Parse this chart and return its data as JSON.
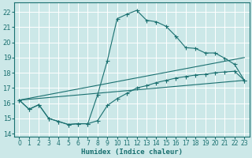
{
  "xlabel": "Humidex (Indice chaleur)",
  "bg_color": "#cce8e8",
  "grid_color": "#ffffff",
  "line_color": "#1a7070",
  "xlim": [
    -0.5,
    23.5
  ],
  "ylim": [
    13.8,
    22.6
  ],
  "xticks": [
    0,
    1,
    2,
    3,
    4,
    5,
    6,
    7,
    8,
    9,
    10,
    11,
    12,
    13,
    14,
    15,
    16,
    17,
    18,
    19,
    20,
    21,
    22,
    23
  ],
  "yticks": [
    14,
    15,
    16,
    17,
    18,
    19,
    20,
    21,
    22
  ],
  "line1_x": [
    0,
    1,
    2,
    3,
    4,
    5,
    6,
    7,
    8,
    9,
    10,
    11,
    12,
    13,
    14,
    15,
    16,
    17,
    18,
    19,
    20,
    21,
    22,
    23
  ],
  "line1_y": [
    16.2,
    15.6,
    15.9,
    15.0,
    14.8,
    14.6,
    14.65,
    14.65,
    16.55,
    18.8,
    21.55,
    21.85,
    22.1,
    21.45,
    21.35,
    21.05,
    20.4,
    19.65,
    19.6,
    19.3,
    19.3,
    18.95,
    18.55,
    17.5
  ],
  "line2_x": [
    0,
    23
  ],
  "line2_y": [
    16.2,
    19.0
  ],
  "line3_x": [
    0,
    23
  ],
  "line3_y": [
    16.2,
    17.5
  ],
  "line4_x": [
    0,
    1,
    2,
    3,
    4,
    5,
    6,
    7,
    8,
    9,
    10,
    11,
    12,
    13,
    14,
    15,
    16,
    17,
    18,
    19,
    20,
    21,
    22,
    23
  ],
  "line4_y": [
    16.2,
    15.6,
    15.9,
    15.0,
    14.8,
    14.6,
    14.65,
    14.65,
    14.85,
    15.85,
    16.3,
    16.65,
    17.0,
    17.15,
    17.35,
    17.5,
    17.65,
    17.75,
    17.85,
    17.9,
    18.0,
    18.05,
    18.1,
    17.5
  ]
}
